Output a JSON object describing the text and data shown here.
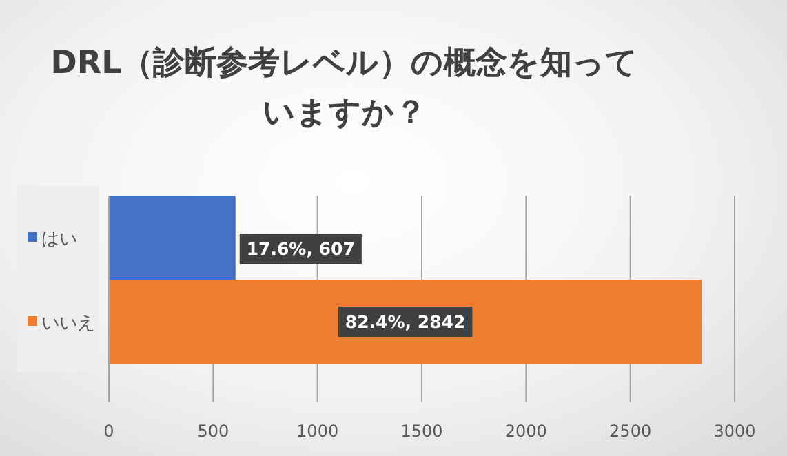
{
  "chart_data": {
    "type": "bar",
    "orientation": "horizontal",
    "title": "DRL（診断参考レベル）の概念を知っていますか？",
    "categories": [
      "はい",
      "いいえ"
    ],
    "values": [
      607,
      2842
    ],
    "colors": [
      "#4472c4",
      "#ed7d31"
    ],
    "value_labels": [
      "17.6%, 607",
      "82.4%, 2842"
    ],
    "xlim": [
      0,
      3000
    ],
    "xticks": [
      0,
      500,
      1000,
      1500,
      2000,
      2500,
      3000
    ],
    "grid": "x"
  }
}
